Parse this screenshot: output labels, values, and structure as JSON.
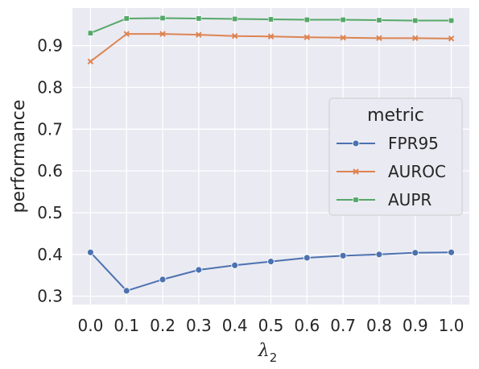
{
  "chart_data": {
    "type": "line",
    "xlabel": "λ",
    "xlabel_subscript": "2",
    "ylabel": "performance",
    "x": [
      0.0,
      0.1,
      0.2,
      0.3,
      0.4,
      0.5,
      0.6,
      0.7,
      0.8,
      0.9,
      1.0
    ],
    "x_tick_labels": [
      "0.0",
      "0.1",
      "0.2",
      "0.3",
      "0.4",
      "0.5",
      "0.6",
      "0.7",
      "0.8",
      "0.9",
      "1.0"
    ],
    "y_ticks": [
      0.3,
      0.4,
      0.5,
      0.6,
      0.7,
      0.8,
      0.9
    ],
    "y_tick_labels": [
      "0.3",
      "0.4",
      "0.5",
      "0.6",
      "0.7",
      "0.8",
      "0.9"
    ],
    "xlim": [
      -0.05,
      1.05
    ],
    "ylim": [
      0.28,
      0.99
    ],
    "grid": true,
    "legend": {
      "title": "metric",
      "placement": "center-right"
    },
    "series": [
      {
        "name": "FPR95",
        "color": "#4c72b0",
        "marker": "circle",
        "values": [
          0.405,
          0.313,
          0.34,
          0.363,
          0.374,
          0.383,
          0.392,
          0.397,
          0.4,
          0.404,
          0.405
        ]
      },
      {
        "name": "AUROC",
        "color": "#dd8452",
        "marker": "x",
        "values": [
          0.862,
          0.928,
          0.928,
          0.926,
          0.923,
          0.922,
          0.92,
          0.919,
          0.918,
          0.918,
          0.917
        ]
      },
      {
        "name": "AUPR",
        "color": "#55a868",
        "marker": "square",
        "values": [
          0.93,
          0.965,
          0.966,
          0.965,
          0.964,
          0.963,
          0.962,
          0.962,
          0.961,
          0.96,
          0.96
        ]
      }
    ],
    "colors": {
      "plot_background": "#eaeaf2",
      "grid": "#ffffff",
      "legend_background": "#eaeaf2",
      "legend_border": "#cccccc",
      "text": "#262626"
    }
  }
}
